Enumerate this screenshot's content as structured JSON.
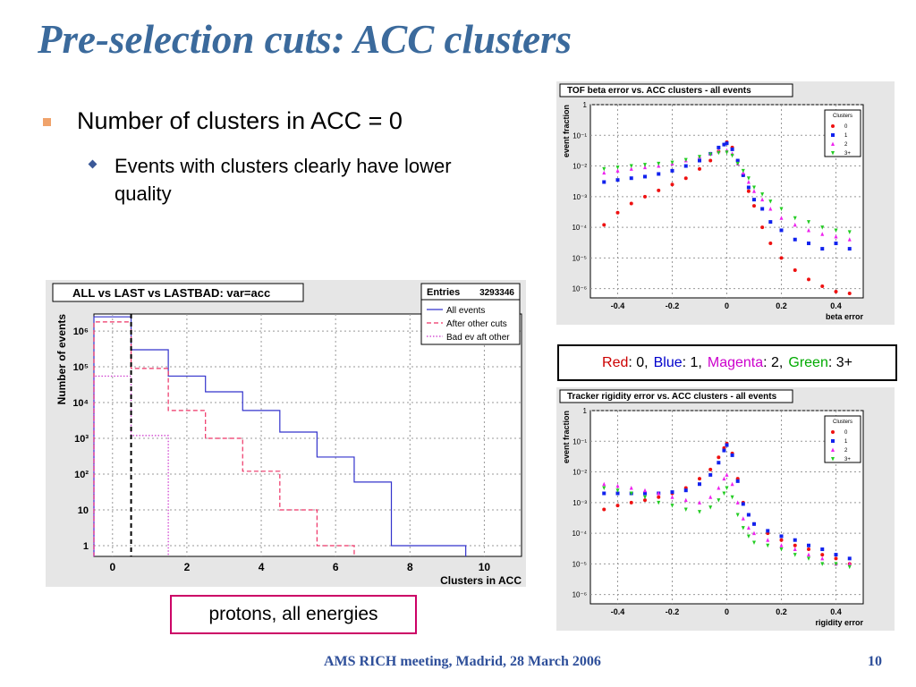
{
  "slide": {
    "title": "Pre-selection cuts: ACC clusters",
    "bullet1": "Number of clusters in ACC = 0",
    "bullet2": "Events with clusters clearly have lower quality",
    "color_legend": {
      "parts": [
        {
          "label": "Red",
          "value": ": 0, ",
          "color": "#cc0000"
        },
        {
          "label": "Blue",
          "value": ": 1, ",
          "color": "#0000cc"
        },
        {
          "label": "Magenta",
          "value": ": 2, ",
          "color": "#cc00cc"
        },
        {
          "label": "Green",
          "value": ": 3+",
          "color": "#00aa00"
        }
      ]
    },
    "protons_label": "protons, all energies",
    "footer": "AMS RICH meeting, Madrid, 28 March 2006",
    "page_number": "10"
  },
  "chart_data": [
    {
      "type": "bar",
      "title": "ALL vs LAST vs LASTBAD: var=acc",
      "xlabel": "Clusters in ACC",
      "ylabel": "Number of events",
      "xlim": [
        -0.5,
        11
      ],
      "ylim": [
        0.5,
        3000000
      ],
      "yscale": "log",
      "xticks": [
        "0",
        "2",
        "4",
        "6",
        "8",
        "10"
      ],
      "yticks": [
        "1",
        "10",
        "10²",
        "10³",
        "10⁴",
        "10⁵",
        "10⁶"
      ],
      "stats": {
        "label": "Entries",
        "value": "3293346"
      },
      "grid": true,
      "legend_position": "top-right",
      "cut_line_x": 0.5,
      "categories": [
        0,
        1,
        2,
        3,
        4,
        5,
        6,
        7,
        8,
        9,
        10
      ],
      "series": [
        {
          "name": "All events",
          "color": "#3333cc",
          "style": "solid",
          "values": [
            2500000,
            300000,
            55000,
            20000,
            6000,
            1500,
            300,
            60,
            1,
            1,
            0
          ]
        },
        {
          "name": "After other cuts",
          "color": "#ee3366",
          "style": "dashed",
          "values": [
            1800000,
            90000,
            6000,
            1000,
            120,
            10,
            1,
            0,
            0,
            0,
            0
          ]
        },
        {
          "name": "Bad ev aft other",
          "color": "#cc33cc",
          "style": "dotted",
          "values": [
            55000,
            1200,
            0,
            0,
            0,
            0,
            0,
            0,
            0,
            0,
            0
          ]
        }
      ]
    },
    {
      "type": "scatter",
      "title": "TOF beta error vs. ACC clusters - all events",
      "xlabel": "beta error",
      "ylabel": "event fraction",
      "xlim": [
        -0.5,
        0.5
      ],
      "ylim": [
        5e-07,
        1
      ],
      "yscale": "log",
      "xticks": [
        "-0.4",
        "-0.2",
        "0",
        "0.2",
        "0.4"
      ],
      "yticks": [
        "10⁻⁶",
        "10⁻⁵",
        "10⁻⁴",
        "10⁻³",
        "10⁻²",
        "10⁻¹",
        "1"
      ],
      "legend_title": "Clusters",
      "legend_position": "top-right",
      "grid": true,
      "series": [
        {
          "name": "0",
          "color": "#ee1111",
          "marker": "circle",
          "points": [
            [
              -0.45,
              0.00012
            ],
            [
              -0.4,
              0.0003
            ],
            [
              -0.35,
              0.0006
            ],
            [
              -0.3,
              0.001
            ],
            [
              -0.25,
              0.0016
            ],
            [
              -0.2,
              0.0025
            ],
            [
              -0.15,
              0.004
            ],
            [
              -0.1,
              0.008
            ],
            [
              -0.06,
              0.015
            ],
            [
              -0.03,
              0.03
            ],
            [
              -0.01,
              0.05
            ],
            [
              0,
              0.06
            ],
            [
              0.02,
              0.04
            ],
            [
              0.04,
              0.015
            ],
            [
              0.06,
              0.005
            ],
            [
              0.08,
              0.0015
            ],
            [
              0.1,
              0.0005
            ],
            [
              0.13,
              0.0001
            ],
            [
              0.16,
              3e-05
            ],
            [
              0.2,
              1e-05
            ],
            [
              0.25,
              4e-06
            ],
            [
              0.3,
              2e-06
            ],
            [
              0.35,
              1.2e-06
            ],
            [
              0.4,
              8e-07
            ],
            [
              0.45,
              7e-07
            ]
          ]
        },
        {
          "name": "1",
          "color": "#1122ee",
          "marker": "square",
          "points": [
            [
              -0.45,
              0.003
            ],
            [
              -0.4,
              0.0035
            ],
            [
              -0.35,
              0.004
            ],
            [
              -0.3,
              0.0045
            ],
            [
              -0.25,
              0.0055
            ],
            [
              -0.2,
              0.007
            ],
            [
              -0.15,
              0.01
            ],
            [
              -0.1,
              0.015
            ],
            [
              -0.06,
              0.025
            ],
            [
              -0.03,
              0.04
            ],
            [
              -0.01,
              0.05
            ],
            [
              0,
              0.055
            ],
            [
              0.02,
              0.035
            ],
            [
              0.04,
              0.015
            ],
            [
              0.06,
              0.005
            ],
            [
              0.08,
              0.002
            ],
            [
              0.1,
              0.0008
            ],
            [
              0.13,
              0.0004
            ],
            [
              0.16,
              0.00015
            ],
            [
              0.2,
              8e-05
            ],
            [
              0.25,
              4e-05
            ],
            [
              0.3,
              3e-05
            ],
            [
              0.35,
              2e-05
            ],
            [
              0.4,
              3e-05
            ],
            [
              0.45,
              2e-05
            ]
          ]
        },
        {
          "name": "2",
          "color": "#ee22ee",
          "marker": "triangle-up",
          "points": [
            [
              -0.45,
              0.006
            ],
            [
              -0.4,
              0.007
            ],
            [
              -0.35,
              0.008
            ],
            [
              -0.3,
              0.009
            ],
            [
              -0.25,
              0.01
            ],
            [
              -0.2,
              0.012
            ],
            [
              -0.15,
              0.015
            ],
            [
              -0.1,
              0.02
            ],
            [
              -0.06,
              0.025
            ],
            [
              -0.03,
              0.03
            ],
            [
              0,
              0.032
            ],
            [
              0.02,
              0.025
            ],
            [
              0.04,
              0.012
            ],
            [
              0.06,
              0.006
            ],
            [
              0.08,
              0.003
            ],
            [
              0.1,
              0.0015
            ],
            [
              0.13,
              0.0008
            ],
            [
              0.16,
              0.0004
            ],
            [
              0.2,
              0.0002
            ],
            [
              0.25,
              0.00012
            ],
            [
              0.3,
              8e-05
            ],
            [
              0.35,
              6e-05
            ],
            [
              0.4,
              5e-05
            ],
            [
              0.45,
              4e-05
            ]
          ]
        },
        {
          "name": "3+",
          "color": "#22cc22",
          "marker": "triangle-down",
          "points": [
            [
              -0.45,
              0.008
            ],
            [
              -0.4,
              0.009
            ],
            [
              -0.35,
              0.01
            ],
            [
              -0.3,
              0.011
            ],
            [
              -0.25,
              0.012
            ],
            [
              -0.2,
              0.013
            ],
            [
              -0.15,
              0.016
            ],
            [
              -0.1,
              0.02
            ],
            [
              -0.06,
              0.024
            ],
            [
              -0.03,
              0.027
            ],
            [
              0,
              0.028
            ],
            [
              0.02,
              0.022
            ],
            [
              0.04,
              0.012
            ],
            [
              0.06,
              0.007
            ],
            [
              0.08,
              0.004
            ],
            [
              0.1,
              0.002
            ],
            [
              0.13,
              0.0012
            ],
            [
              0.16,
              0.0007
            ],
            [
              0.2,
              0.0004
            ],
            [
              0.25,
              0.0002
            ],
            [
              0.3,
              0.00015
            ],
            [
              0.35,
              0.0001
            ],
            [
              0.4,
              8e-05
            ],
            [
              0.45,
              7e-05
            ]
          ]
        }
      ]
    },
    {
      "type": "scatter",
      "title": "Tracker rigidity error vs. ACC clusters - all events",
      "xlabel": "rigidity error",
      "ylabel": "event fraction",
      "xlim": [
        -0.5,
        0.5
      ],
      "ylim": [
        5e-07,
        1
      ],
      "yscale": "log",
      "xticks": [
        "-0.4",
        "-0.2",
        "0",
        "0.2",
        "0.4"
      ],
      "yticks": [
        "10⁻⁶",
        "10⁻⁵",
        "10⁻⁴",
        "10⁻³",
        "10⁻²",
        "10⁻¹",
        "1"
      ],
      "legend_title": "Clusters",
      "legend_position": "top-right",
      "grid": true,
      "series": [
        {
          "name": "0",
          "color": "#ee1111",
          "marker": "circle",
          "points": [
            [
              -0.45,
              0.0006
            ],
            [
              -0.4,
              0.0008
            ],
            [
              -0.35,
              0.001
            ],
            [
              -0.3,
              0.0012
            ],
            [
              -0.25,
              0.0015
            ],
            [
              -0.2,
              0.002
            ],
            [
              -0.15,
              0.003
            ],
            [
              -0.1,
              0.006
            ],
            [
              -0.06,
              0.012
            ],
            [
              -0.03,
              0.03
            ],
            [
              -0.01,
              0.06
            ],
            [
              0,
              0.085
            ],
            [
              0.02,
              0.04
            ],
            [
              0.04,
              0.006
            ],
            [
              0.06,
              0.001
            ],
            [
              0.08,
              0.0004
            ],
            [
              0.1,
              0.0002
            ],
            [
              0.15,
              0.0001
            ],
            [
              0.2,
              6e-05
            ],
            [
              0.25,
              4e-05
            ],
            [
              0.3,
              3e-05
            ],
            [
              0.35,
              2e-05
            ],
            [
              0.4,
              1.5e-05
            ],
            [
              0.45,
              1e-05
            ]
          ]
        },
        {
          "name": "1",
          "color": "#1122ee",
          "marker": "square",
          "points": [
            [
              -0.45,
              0.002
            ],
            [
              -0.4,
              0.002
            ],
            [
              -0.35,
              0.002
            ],
            [
              -0.3,
              0.002
            ],
            [
              -0.25,
              0.002
            ],
            [
              -0.2,
              0.0022
            ],
            [
              -0.15,
              0.0025
            ],
            [
              -0.1,
              0.004
            ],
            [
              -0.06,
              0.008
            ],
            [
              -0.03,
              0.02
            ],
            [
              -0.01,
              0.05
            ],
            [
              0,
              0.075
            ],
            [
              0.02,
              0.035
            ],
            [
              0.04,
              0.005
            ],
            [
              0.06,
              0.0009
            ],
            [
              0.08,
              0.0004
            ],
            [
              0.1,
              0.0002
            ],
            [
              0.15,
              0.00012
            ],
            [
              0.2,
              8e-05
            ],
            [
              0.25,
              6e-05
            ],
            [
              0.3,
              4e-05
            ],
            [
              0.35,
              3e-05
            ],
            [
              0.4,
              2e-05
            ],
            [
              0.45,
              1.5e-05
            ]
          ]
        },
        {
          "name": "2",
          "color": "#ee22ee",
          "marker": "triangle-up",
          "points": [
            [
              -0.45,
              0.004
            ],
            [
              -0.4,
              0.0035
            ],
            [
              -0.35,
              0.003
            ],
            [
              -0.3,
              0.0025
            ],
            [
              -0.25,
              0.002
            ],
            [
              -0.2,
              0.0015
            ],
            [
              -0.15,
              0.0012
            ],
            [
              -0.1,
              0.001
            ],
            [
              -0.06,
              0.0015
            ],
            [
              -0.03,
              0.003
            ],
            [
              -0.01,
              0.006
            ],
            [
              0,
              0.008
            ],
            [
              0.02,
              0.004
            ],
            [
              0.04,
              0.001
            ],
            [
              0.06,
              0.0003
            ],
            [
              0.08,
              0.00015
            ],
            [
              0.1,
              0.0001
            ],
            [
              0.15,
              6e-05
            ],
            [
              0.2,
              4e-05
            ],
            [
              0.25,
              3e-05
            ],
            [
              0.3,
              2e-05
            ],
            [
              0.35,
              1.5e-05
            ],
            [
              0.4,
              1e-05
            ],
            [
              0.45,
              1e-05
            ]
          ]
        },
        {
          "name": "3+",
          "color": "#22cc22",
          "marker": "triangle-down",
          "points": [
            [
              -0.45,
              0.003
            ],
            [
              -0.4,
              0.0025
            ],
            [
              -0.35,
              0.002
            ],
            [
              -0.3,
              0.0015
            ],
            [
              -0.25,
              0.001
            ],
            [
              -0.2,
              0.0008
            ],
            [
              -0.15,
              0.0006
            ],
            [
              -0.1,
              0.0005
            ],
            [
              -0.06,
              0.0007
            ],
            [
              -0.03,
              0.0012
            ],
            [
              -0.01,
              0.002
            ],
            [
              0,
              0.003
            ],
            [
              0.02,
              0.0015
            ],
            [
              0.04,
              0.0004
            ],
            [
              0.06,
              0.00015
            ],
            [
              0.08,
              8e-05
            ],
            [
              0.1,
              5e-05
            ],
            [
              0.15,
              4e-05
            ],
            [
              0.2,
              3e-05
            ],
            [
              0.25,
              2e-05
            ],
            [
              0.3,
              1.5e-05
            ],
            [
              0.35,
              1e-05
            ],
            [
              0.4,
              1e-05
            ],
            [
              0.45,
              8e-06
            ]
          ]
        }
      ]
    }
  ]
}
